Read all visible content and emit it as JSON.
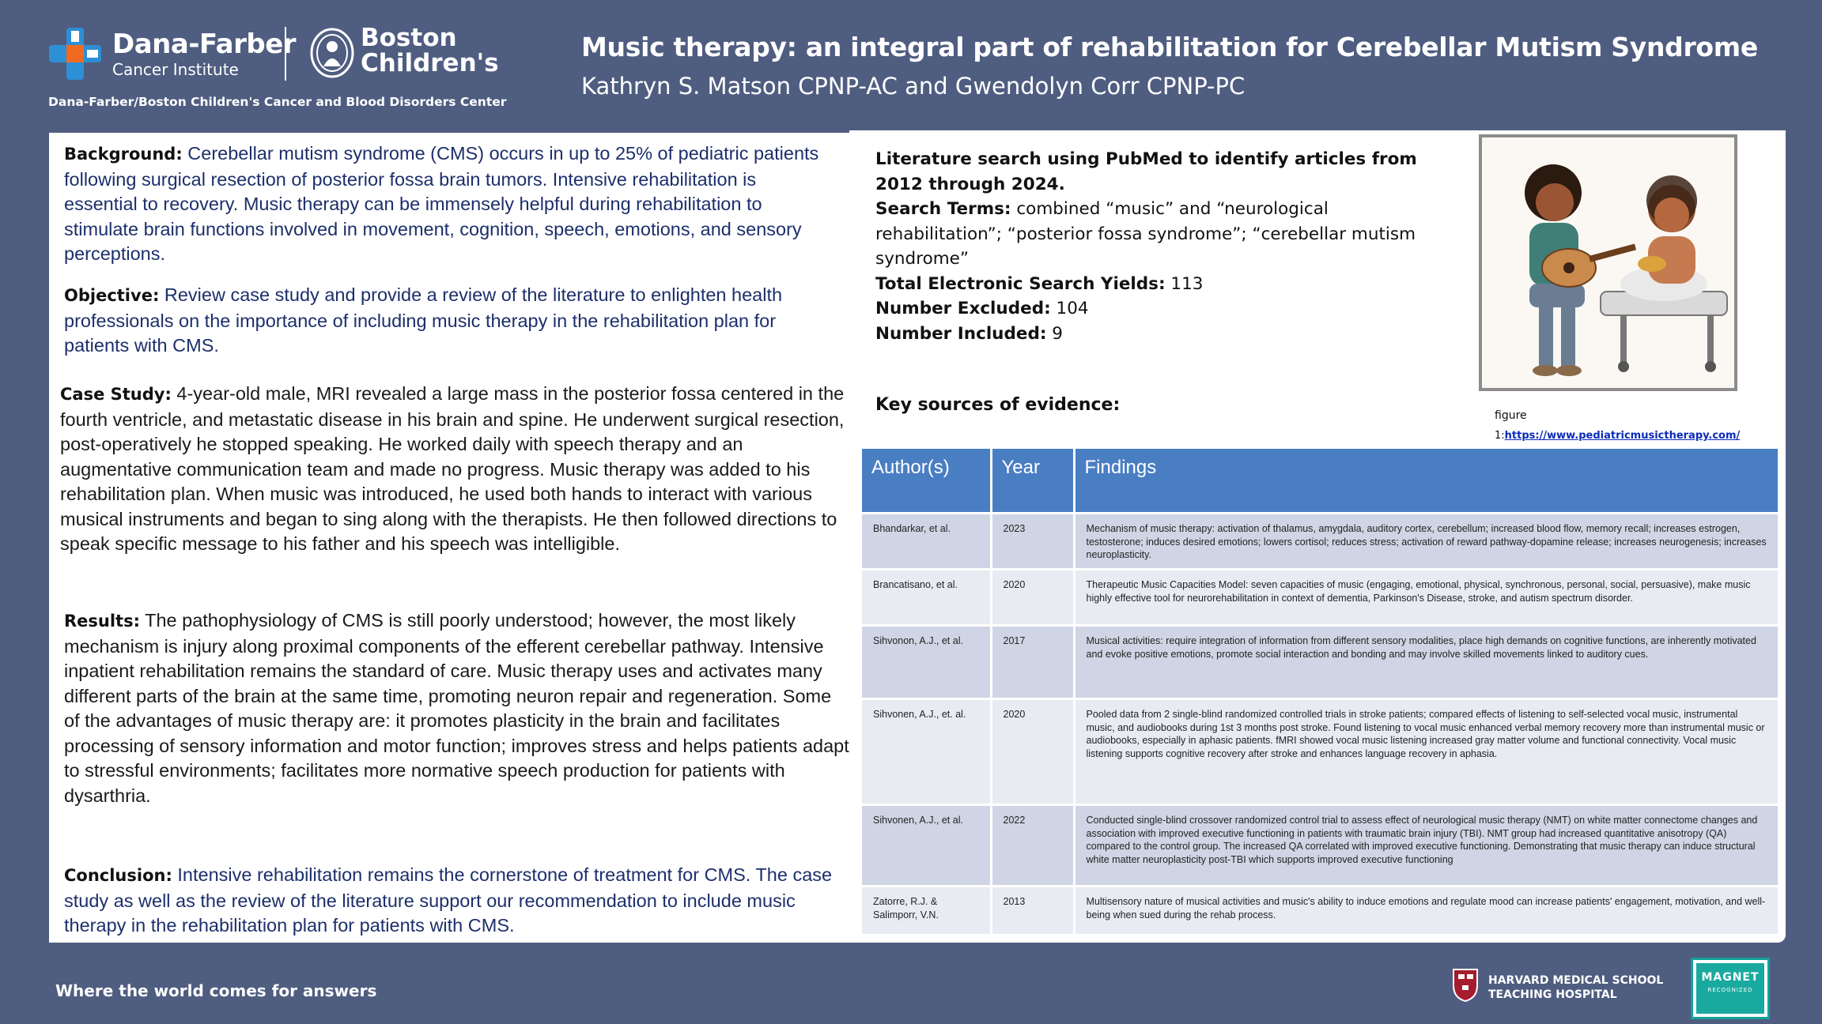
{
  "header": {
    "logo_df_line1": "Dana-Farber",
    "logo_df_line2": "Cancer Institute",
    "logo_bch_line1": "Boston",
    "logo_bch_line2": "Children's",
    "center_name": "Dana-Farber/Boston Children's Cancer and Blood Disorders Center",
    "title": "Music therapy: an integral part of rehabilitation for Cerebellar Mutism Syndrome",
    "authors": "Kathryn S. Matson CPNP-AC and Gwendolyn Corr CPNP-PC"
  },
  "left": {
    "background": {
      "label": "Background:",
      "text": "Cerebellar mutism syndrome (CMS) occurs in up to 25% of pediatric patients following surgical resection of posterior fossa brain tumors. Intensive rehabilitation is essential to recovery. Music therapy can be immensely helpful during rehabilitation to stimulate brain functions involved in movement, cognition, speech, emotions, and sensory perceptions."
    },
    "objective": {
      "label": "Objective:",
      "text": "Review case study and provide a review of the literature to enlighten health professionals on the importance of including music therapy in the rehabilitation plan for patients with CMS."
    },
    "case_study": {
      "label": "Case Study:",
      "text": "4-year-old male, MRI revealed a large mass in the posterior fossa centered in the fourth ventricle, and metastatic disease in his brain and spine. He underwent surgical resection, post-operatively he stopped speaking. He worked daily with speech therapy and an augmentative communication team and made no progress. Music therapy was added to his rehabilitation plan. When music was introduced, he used both hands to interact with various musical instruments and began to sing along with the therapists. He then followed directions to speak specific message to his father and his speech was intelligible."
    },
    "results": {
      "label": "Results:",
      "text": "The pathophysiology of CMS is still poorly understood; however, the most likely mechanism is injury along proximal components of the efferent cerebellar pathway. Intensive inpatient rehabilitation remains the standard of care. Music therapy uses and activates many different parts of the brain at the same time, promoting neuron repair and regeneration. Some of the advantages of music therapy are: it promotes plasticity in the brain and facilitates processing of sensory information and motor function; improves stress and helps patients adapt to stressful environments; facilitates more normative speech production for patients with dysarthria."
    },
    "conclusion": {
      "label": "Conclusion:",
      "text": "Intensive rehabilitation remains the cornerstone of treatment for CMS. The case study as well as the review of the literature support our recommendation to include music therapy in the rehabilitation plan for patients with CMS."
    }
  },
  "lit_search": {
    "line1": "Literature search using PubMed to identify articles from 2012 through 2024.",
    "terms_label": "Search Terms:",
    "terms_text": "combined “music” and “neurological rehabilitation”; “posterior fossa syndrome”; “cerebellar mutism syndrome”",
    "yields_label": "Total Electronic Search Yields:",
    "yields_value": "113",
    "excluded_label": "Number Excluded:",
    "excluded_value": "104",
    "included_label": "Number Included:",
    "included_value": "9",
    "key_sources": "Key sources of evidence:"
  },
  "figure": {
    "caption": "figure",
    "link_prefix": "1:",
    "link": "https://www.pediatricmusictherapy.com/"
  },
  "table": {
    "headers": [
      "Author(s)",
      "Year",
      "Findings"
    ],
    "rows": [
      {
        "author": "Bhandarkar, et al.",
        "year": "2023",
        "findings": "Mechanism of music therapy: activation of thalamus, amygdala, auditory cortex, cerebellum; increased blood flow, memory recall; increases estrogen, testosterone; induces desired emotions; lowers cortisol; reduces stress; activation of reward pathway-dopamine release; increases neurogenesis; increases neuroplasticity."
      },
      {
        "author": "Brancatisano, et al.",
        "year": "2020",
        "findings": "Therapeutic Music Capacities Model: seven capacities of music (engaging, emotional, physical, synchronous, personal, social, persuasive), make music highly effective tool for neurorehabilitation in context of dementia, Parkinson's Disease, stroke, and autism spectrum disorder."
      },
      {
        "author": "Sihvonon, A.J., et al.",
        "year": "2017",
        "findings": "Musical activities: require integration of information from different sensory modalities, place high demands on cognitive functions, are inherently motivated and evoke positive emotions, promote social interaction and bonding and may involve skilled movements linked to auditory cues."
      },
      {
        "author": "Sihvonen, A.J., et. al.",
        "year": "2020",
        "findings": "Pooled data from 2 single-blind randomized controlled trials in stroke patients; compared effects of listening to self-selected vocal music, instrumental music, and audiobooks during 1st 3 months post stroke. Found listening to vocal music enhanced verbal memory recovery more than instrumental music or audiobooks, especially in aphasic patients. fMRI showed vocal music listening increased gray matter volume and functional connectivity. Vocal music listening supports cognitive recovery after stroke and enhances language recovery in aphasia."
      },
      {
        "author": "Sihvonen, A.J., et al.",
        "year": "2022",
        "findings": "Conducted single-blind crossover randomized control trial to assess effect of neurological music therapy (NMT) on white matter connectome changes and association with improved executive functioning in patients with traumatic brain injury (TBI). NMT group had increased quantitative anisotropy (QA) compared to the control group. The increased QA correlated with improved executive functioning. Demonstrating that music therapy can induce structural white matter neuroplasticity post-TBI which supports improved executive functioning"
      },
      {
        "author": "Zatorre, R.J. & Salimporr, V.N.",
        "year": "2013",
        "findings": "Multisensory nature of musical activities and music's ability to induce emotions and regulate mood can increase patients' engagement, motivation, and well-being when sued during the rehab process."
      }
    ]
  },
  "footer": {
    "tagline": "Where the world comes for answers",
    "hms_line1": "HARVARD MEDICAL SCHOOL",
    "hms_line2": "TEACHING HOSPITAL",
    "magnet": "MAGNET",
    "magnet_sub": "RECOGNIZED"
  },
  "colors": {
    "background": "#4f5d80",
    "table_header": "#4a7ec3",
    "row_dark": "#cfd5e4",
    "row_light": "#e8ebf2",
    "link": "#0a2bb8",
    "df_orange": "#f26a21",
    "df_blue": "#2d8fd5",
    "magnet_teal": "#1aa99f"
  }
}
